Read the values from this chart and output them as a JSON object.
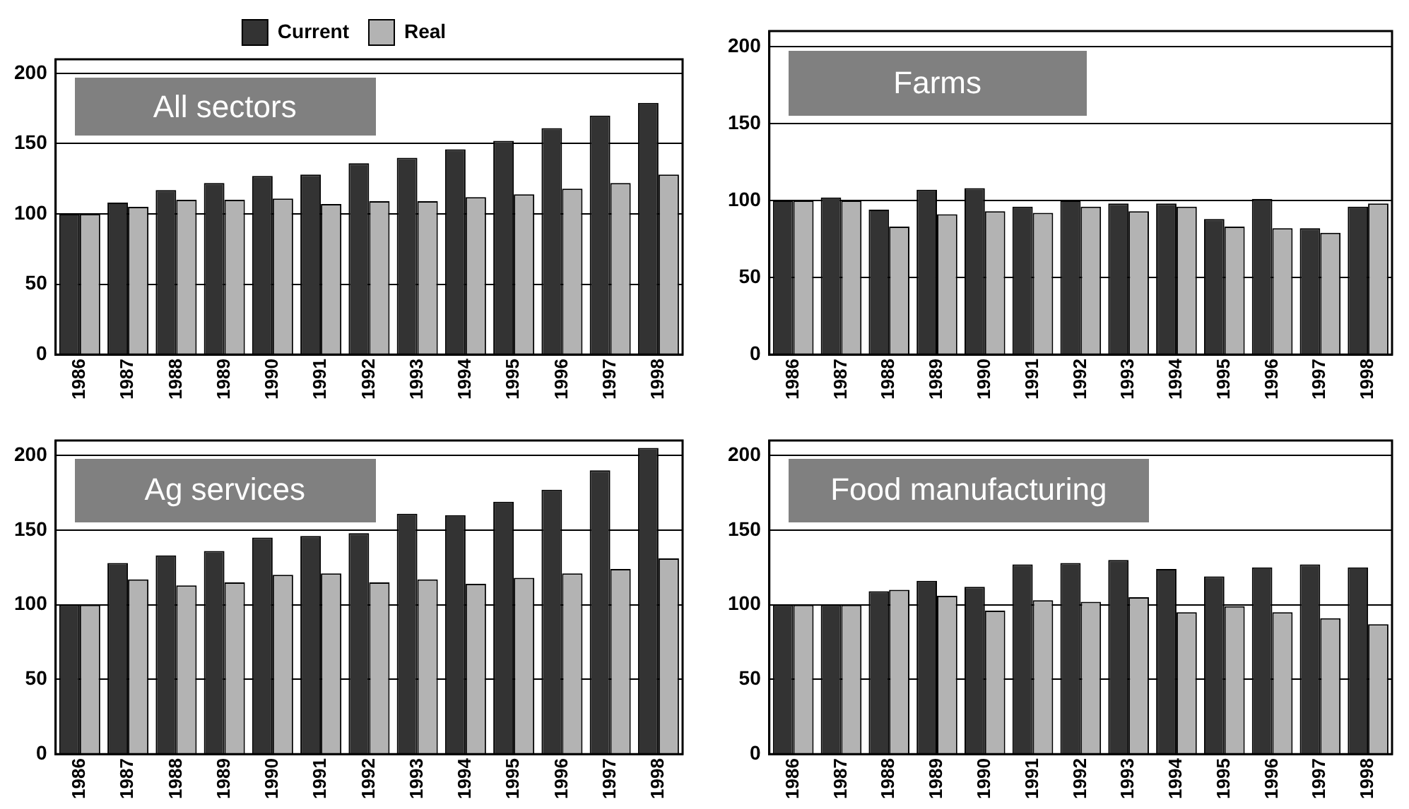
{
  "chart_data": [
    {
      "type": "bar",
      "title": "All sectors",
      "categories": [
        "1986",
        "1987",
        "1988",
        "1989",
        "1990",
        "1991",
        "1992",
        "1993",
        "1994",
        "1995",
        "1996",
        "1997",
        "1998"
      ],
      "series": [
        {
          "name": "Current",
          "color": "#333333",
          "values": [
            100,
            108,
            117,
            122,
            127,
            128,
            136,
            140,
            146,
            152,
            161,
            170,
            179
          ]
        },
        {
          "name": "Real",
          "color": "#b3b3b3",
          "values": [
            100,
            105,
            110,
            110,
            111,
            107,
            109,
            109,
            112,
            114,
            118,
            122,
            128
          ]
        }
      ],
      "ylim": [
        0,
        210
      ],
      "yticks": [
        0,
        50,
        100,
        150,
        200
      ],
      "grid": "y",
      "legend": "top"
    },
    {
      "type": "bar",
      "title": "Farms",
      "categories": [
        "1986",
        "1987",
        "1988",
        "1989",
        "1990",
        "1991",
        "1992",
        "1993",
        "1994",
        "1995",
        "1996",
        "1997",
        "1998"
      ],
      "series": [
        {
          "color": "#333333",
          "values": [
            100,
            102,
            94,
            107,
            108,
            96,
            100,
            98,
            98,
            88,
            101,
            82,
            96
          ]
        },
        {
          "color": "#b3b3b3",
          "values": [
            100,
            100,
            83,
            91,
            93,
            92,
            96,
            93,
            96,
            83,
            82,
            79,
            98
          ]
        }
      ],
      "ylim": [
        0,
        210
      ],
      "yticks": [
        0,
        50,
        100,
        150,
        200
      ],
      "grid": "y"
    },
    {
      "type": "bar",
      "title": "Ag services",
      "categories": [
        "1986",
        "1987",
        "1988",
        "1989",
        "1990",
        "1991",
        "1992",
        "1993",
        "1994",
        "1995",
        "1996",
        "1997",
        "1998"
      ],
      "series": [
        {
          "color": "#333333",
          "values": [
            100,
            128,
            133,
            136,
            145,
            146,
            148,
            161,
            160,
            169,
            177,
            190,
            205
          ]
        },
        {
          "color": "#b3b3b3",
          "values": [
            100,
            117,
            113,
            115,
            120,
            121,
            115,
            117,
            114,
            118,
            121,
            124,
            131
          ]
        }
      ],
      "ylim": [
        0,
        210
      ],
      "yticks": [
        0,
        50,
        100,
        150,
        200
      ],
      "grid": "y"
    },
    {
      "type": "bar",
      "title": "Food manufacturing",
      "categories": [
        "1986",
        "1987",
        "1988",
        "1989",
        "1990",
        "1991",
        "1992",
        "1993",
        "1994",
        "1995",
        "1996",
        "1997",
        "1998"
      ],
      "series": [
        {
          "color": "#333333",
          "values": [
            100,
            100,
            109,
            116,
            112,
            127,
            128,
            130,
            124,
            119,
            125,
            127,
            125
          ]
        },
        {
          "color": "#b3b3b3",
          "values": [
            100,
            100,
            110,
            106,
            96,
            103,
            102,
            105,
            95,
            99,
            95,
            91,
            87
          ]
        }
      ],
      "ylim": [
        0,
        210
      ],
      "yticks": [
        0,
        50,
        100,
        150,
        200
      ],
      "grid": "y"
    }
  ]
}
